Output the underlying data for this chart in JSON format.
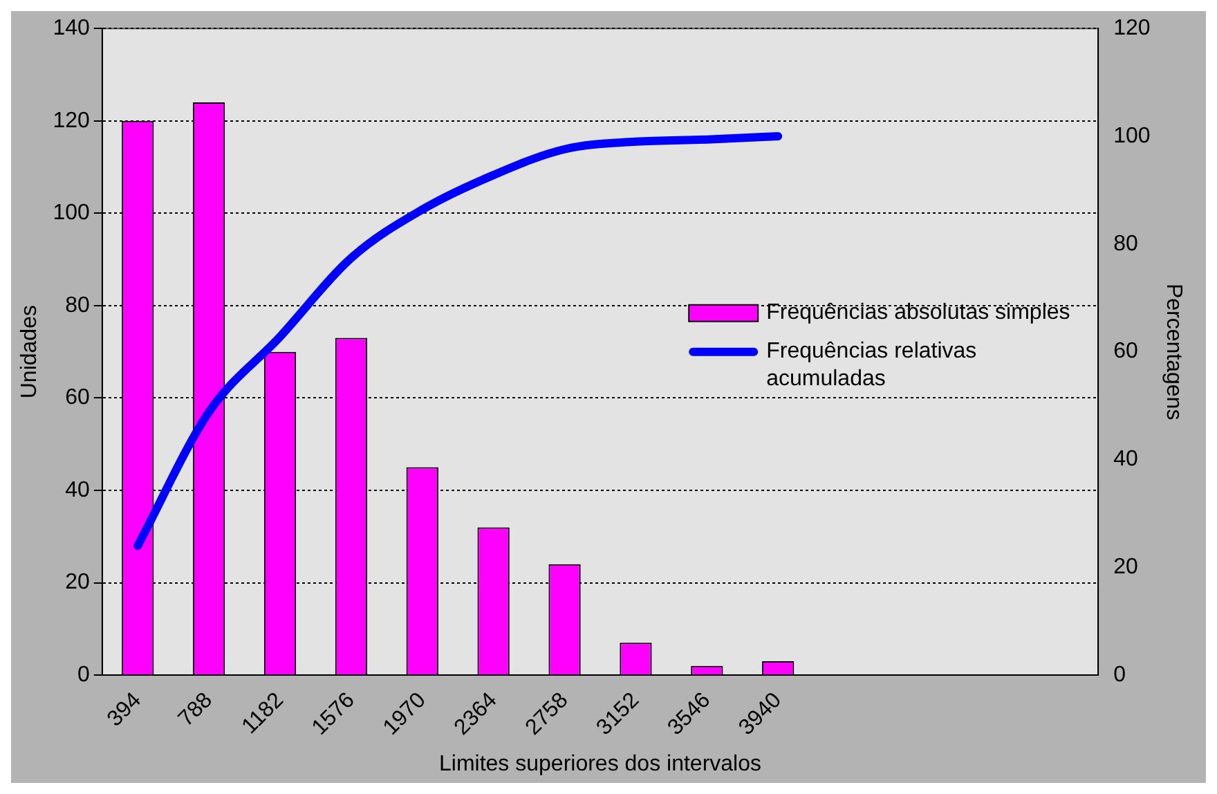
{
  "chart_data": {
    "type": "bar",
    "xlabel": "Limites superiores dos intervalos",
    "ylabel": "Unidades",
    "y2label": "Percentagens",
    "categories": [
      "394",
      "788",
      "1182",
      "1576",
      "1970",
      "2364",
      "2758",
      "3152",
      "3546",
      "3940",
      null,
      null,
      null,
      null
    ],
    "series": [
      {
        "name": "Frequências absolutas simples",
        "color": "#ff00ff",
        "values": [
          120,
          124,
          70,
          73,
          45,
          32,
          24,
          7,
          2,
          3,
          null,
          null,
          null,
          null
        ]
      },
      {
        "name": "Frequências relativas acumuladas",
        "type": "line",
        "axis": "y2",
        "color": "#0000ff",
        "values": [
          24,
          48.8,
          62.8,
          77.4,
          86.4,
          92.8,
          97.6,
          99,
          99.4,
          100,
          null,
          null,
          null,
          null
        ]
      }
    ],
    "ylim": [
      0,
      140
    ],
    "yticks": [
      0,
      20,
      40,
      60,
      80,
      100,
      120,
      140
    ],
    "y2lim": [
      0,
      120
    ],
    "y2ticks": [
      0,
      20,
      40,
      60,
      80,
      100,
      120
    ],
    "grid": "y",
    "legend": "right",
    "marker": "none"
  }
}
